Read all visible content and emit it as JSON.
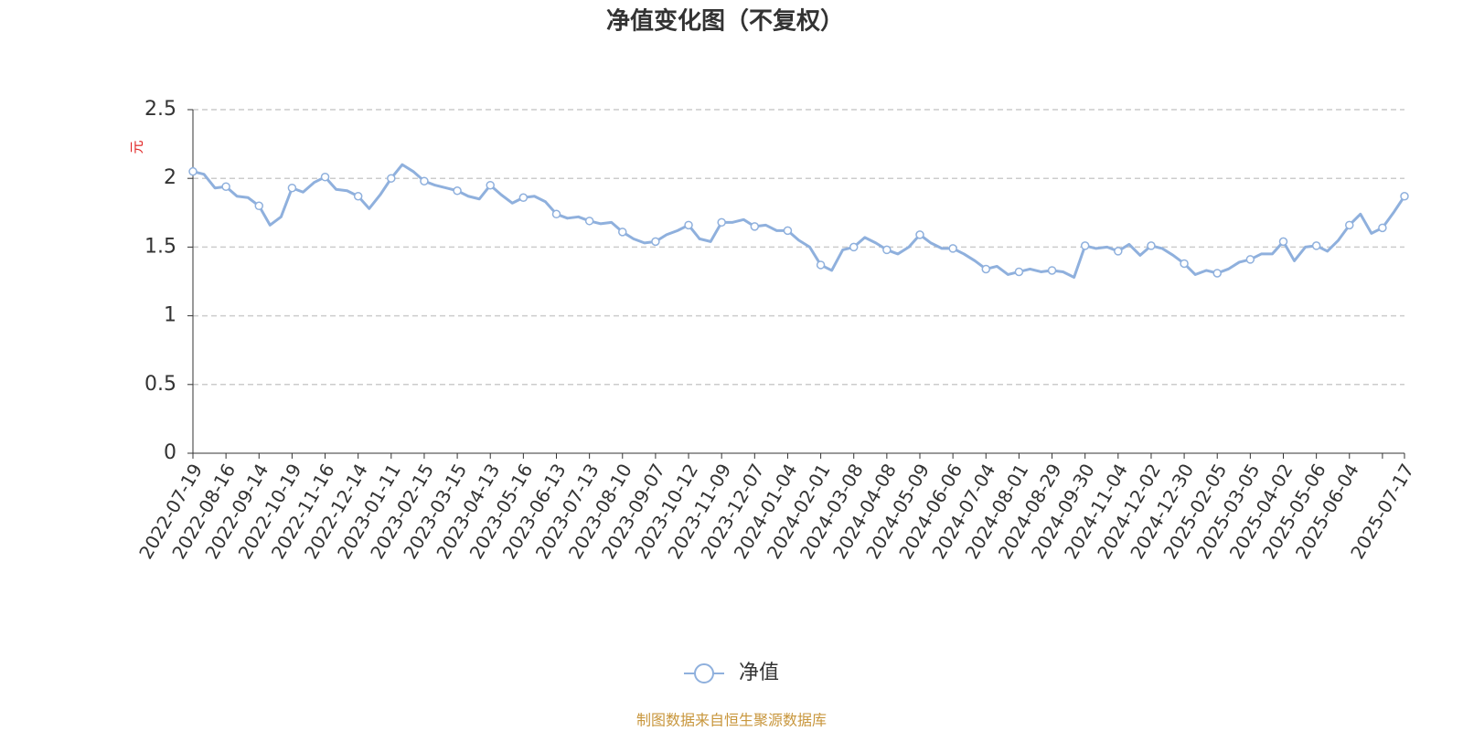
{
  "chart_data": {
    "type": "line",
    "title": "净值变化图（不复权）",
    "y_label": "元",
    "source": "制图数据来自恒生聚源数据库",
    "categories": [
      "2022-07-19",
      null,
      null,
      "2022-08-16",
      null,
      null,
      "2022-09-14",
      null,
      null,
      "2022-10-19",
      null,
      null,
      "2022-11-16",
      null,
      null,
      "2022-12-14",
      null,
      null,
      "2023-01-11",
      null,
      null,
      "2023-02-15",
      null,
      null,
      "2023-03-15",
      null,
      null,
      "2023-04-13",
      null,
      null,
      "2023-05-16",
      null,
      null,
      "2023-06-13",
      null,
      null,
      "2023-07-13",
      null,
      null,
      "2023-08-10",
      null,
      null,
      "2023-09-07",
      null,
      null,
      "2023-10-12",
      null,
      null,
      "2023-11-09",
      null,
      null,
      "2023-12-07",
      null,
      null,
      "2024-01-04",
      null,
      null,
      "2024-02-01",
      null,
      null,
      "2024-03-08",
      null,
      null,
      "2024-04-08",
      null,
      null,
      "2024-05-09",
      null,
      null,
      "2024-06-06",
      null,
      null,
      "2024-07-04",
      null,
      null,
      "2024-08-01",
      null,
      null,
      "2024-08-29",
      null,
      null,
      "2024-09-30",
      null,
      null,
      "2024-11-04",
      null,
      null,
      "2024-12-02",
      null,
      null,
      "2024-12-30",
      null,
      null,
      "2025-02-05",
      null,
      null,
      "2025-03-05",
      null,
      null,
      "2025-04-02",
      null,
      null,
      "2025-05-06",
      null,
      null,
      "2025-06-04",
      null,
      null,
      null,
      null,
      "2025-07-17"
    ],
    "series": [
      {
        "name": "净值",
        "color": "#8fb0dd",
        "values": [
          2.05,
          2.03,
          1.93,
          1.94,
          1.87,
          1.86,
          1.8,
          1.66,
          1.72,
          1.93,
          1.9,
          1.97,
          2.01,
          1.92,
          1.91,
          1.87,
          1.78,
          1.88,
          2.0,
          2.1,
          2.05,
          1.98,
          1.95,
          1.93,
          1.91,
          1.87,
          1.85,
          1.95,
          1.88,
          1.82,
          1.86,
          1.87,
          1.83,
          1.74,
          1.71,
          1.72,
          1.69,
          1.67,
          1.68,
          1.61,
          1.56,
          1.53,
          1.54,
          1.59,
          1.62,
          1.66,
          1.56,
          1.54,
          1.68,
          1.68,
          1.7,
          1.65,
          1.66,
          1.62,
          1.62,
          1.55,
          1.5,
          1.37,
          1.33,
          1.48,
          1.5,
          1.57,
          1.53,
          1.48,
          1.45,
          1.5,
          1.59,
          1.53,
          1.49,
          1.49,
          1.45,
          1.4,
          1.34,
          1.36,
          1.3,
          1.32,
          1.34,
          1.32,
          1.33,
          1.32,
          1.28,
          1.51,
          1.49,
          1.5,
          1.47,
          1.52,
          1.44,
          1.51,
          1.49,
          1.44,
          1.38,
          1.3,
          1.33,
          1.31,
          1.34,
          1.39,
          1.41,
          1.45,
          1.45,
          1.54,
          1.4,
          1.5,
          1.51,
          1.47,
          1.55,
          1.66,
          1.74,
          1.6,
          1.64,
          1.75,
          1.87
        ]
      }
    ],
    "ylim": [
      0,
      2.5
    ],
    "yticks": [
      0,
      0.5,
      1,
      1.5,
      2,
      2.5
    ],
    "grid": true
  }
}
